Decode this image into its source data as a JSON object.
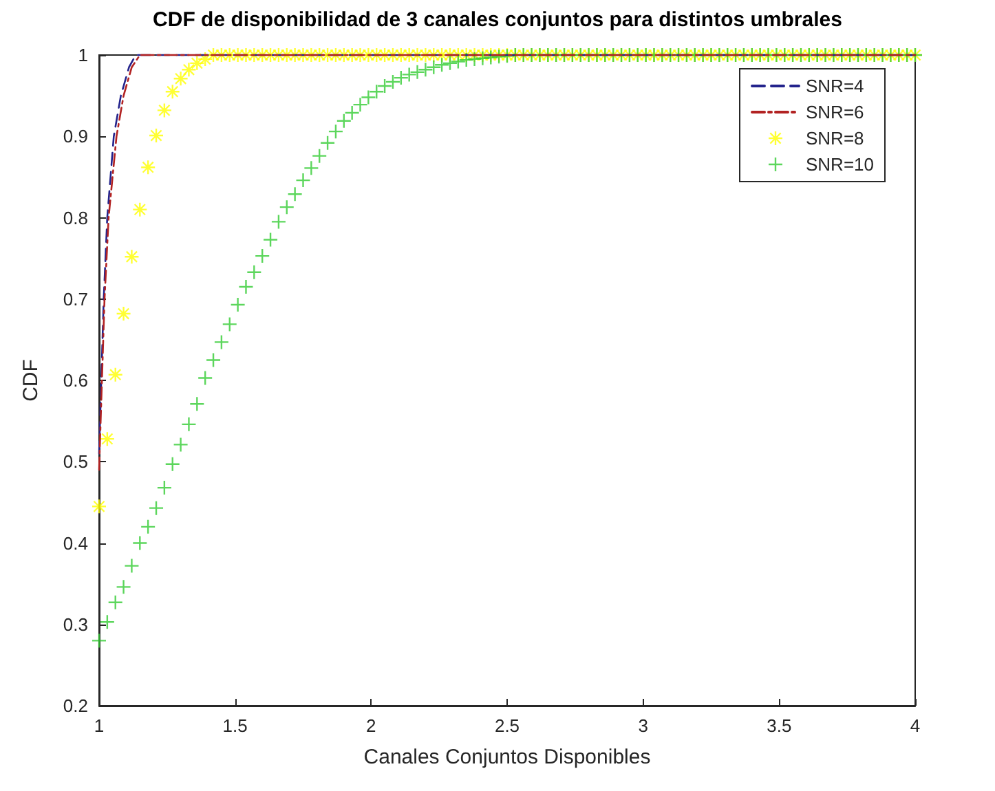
{
  "chart_data": {
    "type": "line",
    "title": "CDF de disponibilidad de 3 canales conjuntos para distintos umbrales",
    "xlabel": "Canales Conjuntos Disponibles",
    "ylabel": "CDF",
    "xlim": [
      1,
      4
    ],
    "xticks": [
      1,
      1.5,
      2,
      2.5,
      3,
      3.5,
      4
    ],
    "ylim": [
      0.2,
      1
    ],
    "yticks": [
      0.2,
      0.3,
      0.4,
      0.5,
      0.6,
      0.7,
      0.8,
      0.9,
      1
    ],
    "grid": false,
    "legend": "top right",
    "series": [
      {
        "name": "SNR=4",
        "color": "#23238c",
        "line_style": "dashed",
        "marker": "none",
        "x": [
          1,
          1.017,
          1.03,
          1.054,
          1.08,
          1.11,
          1.135,
          4
        ],
        "values": [
          0.51,
          0.7,
          0.8,
          0.9,
          0.95,
          0.985,
          1,
          1
        ]
      },
      {
        "name": "SNR=6",
        "color": "#b22222",
        "line_style": "dashdot",
        "marker": "none",
        "x": [
          1,
          1.02,
          1.035,
          1.064,
          1.09,
          1.12,
          1.15,
          4
        ],
        "values": [
          0.49,
          0.7,
          0.8,
          0.9,
          0.95,
          0.985,
          1,
          1
        ]
      },
      {
        "name": "SNR=8",
        "color": "#ffff00",
        "type": "scatter",
        "marker": "star",
        "x": [
          1,
          1.03,
          1.06,
          1.09,
          1.12,
          1.15,
          1.18,
          1.21,
          1.24,
          1.27,
          1.3,
          1.33,
          1.36,
          1.39,
          1.42,
          1.45,
          1.48,
          1.51,
          1.54,
          1.57,
          1.6,
          1.63,
          1.66,
          1.69,
          1.72,
          1.75,
          1.78,
          1.81,
          1.84,
          1.87,
          1.9,
          1.93,
          1.96,
          1.99,
          2.02,
          2.05,
          2.08,
          2.11,
          2.14,
          2.17,
          2.2,
          2.23,
          2.26,
          2.29,
          2.32,
          2.35,
          2.38,
          2.41,
          2.44,
          2.47,
          2.5,
          2.53,
          2.56,
          2.59,
          2.62,
          2.65,
          2.68,
          2.71,
          2.74,
          2.77,
          2.8,
          2.83,
          2.86,
          2.89,
          2.92,
          2.95,
          2.98,
          3.01,
          3.04,
          3.07,
          3.1,
          3.13,
          3.16,
          3.19,
          3.22,
          3.25,
          3.28,
          3.31,
          3.34,
          3.37,
          3.4,
          3.43,
          3.46,
          3.49,
          3.52,
          3.55,
          3.58,
          3.61,
          3.64,
          3.67,
          3.7,
          3.73,
          3.76,
          3.79,
          3.82,
          3.85,
          3.88,
          3.91,
          3.94,
          3.97,
          4
        ],
        "values": [
          0.445,
          0.528,
          0.607,
          0.682,
          0.752,
          0.81,
          0.862,
          0.901,
          0.932,
          0.955,
          0.971,
          0.982,
          0.99,
          0.995,
          1,
          1,
          1,
          1,
          1,
          1,
          1,
          1,
          1,
          1,
          1,
          1,
          1,
          1,
          1,
          1,
          1,
          1,
          1,
          1,
          1,
          1,
          1,
          1,
          1,
          1,
          1,
          1,
          1,
          1,
          1,
          1,
          1,
          1,
          1,
          1,
          1,
          1,
          1,
          1,
          1,
          1,
          1,
          1,
          1,
          1,
          1,
          1,
          1,
          1,
          1,
          1,
          1,
          1,
          1,
          1,
          1,
          1,
          1,
          1,
          1,
          1,
          1,
          1,
          1,
          1,
          1,
          1,
          1,
          1,
          1,
          1,
          1,
          1,
          1,
          1,
          1,
          1,
          1,
          1,
          1,
          1,
          1,
          1,
          1,
          1,
          1
        ]
      },
      {
        "name": "SNR=10",
        "color": "#33cc33",
        "type": "scatter",
        "marker": "cross",
        "x": [
          1,
          1.03,
          1.06,
          1.09,
          1.12,
          1.15,
          1.18,
          1.21,
          1.24,
          1.27,
          1.3,
          1.33,
          1.36,
          1.39,
          1.42,
          1.45,
          1.48,
          1.51,
          1.54,
          1.57,
          1.6,
          1.63,
          1.66,
          1.69,
          1.72,
          1.75,
          1.78,
          1.81,
          1.84,
          1.87,
          1.9,
          1.93,
          1.96,
          1.99,
          2.02,
          2.05,
          2.08,
          2.11,
          2.14,
          2.17,
          2.2,
          2.23,
          2.26,
          2.29,
          2.32,
          2.35,
          2.38,
          2.41,
          2.44,
          2.47,
          2.5,
          2.53,
          2.56,
          2.59,
          2.62,
          2.65,
          2.68,
          2.71,
          2.74,
          2.77,
          2.8,
          2.83,
          2.86,
          2.89,
          2.92,
          2.95,
          2.98,
          3.01,
          3.04,
          3.07,
          3.1,
          3.13,
          3.16,
          3.19,
          3.22,
          3.25,
          3.28,
          3.31,
          3.34,
          3.37,
          3.4,
          3.43,
          3.46,
          3.49,
          3.52,
          3.55,
          3.58,
          3.61,
          3.64,
          3.67,
          3.7,
          3.73,
          3.76,
          3.79,
          3.82,
          3.85,
          3.88,
          3.91,
          3.94,
          3.97,
          4
        ],
        "values": [
          0.28,
          0.303,
          0.327,
          0.346,
          0.372,
          0.4,
          0.42,
          0.443,
          0.468,
          0.497,
          0.521,
          0.546,
          0.571,
          0.603,
          0.625,
          0.647,
          0.669,
          0.693,
          0.715,
          0.733,
          0.753,
          0.773,
          0.795,
          0.813,
          0.829,
          0.846,
          0.861,
          0.876,
          0.892,
          0.906,
          0.919,
          0.929,
          0.939,
          0.948,
          0.955,
          0.962,
          0.967,
          0.972,
          0.976,
          0.979,
          0.982,
          0.985,
          0.988,
          0.99,
          0.992,
          0.994,
          0.995,
          0.996,
          0.997,
          0.998,
          0.999,
          1,
          1,
          1,
          1,
          1,
          1,
          1,
          1,
          1,
          1,
          1,
          1,
          1,
          1,
          1,
          1,
          1,
          1,
          1,
          1,
          1,
          1,
          1,
          1,
          1,
          1,
          1,
          1,
          1,
          1,
          1,
          1,
          1,
          1,
          1,
          1,
          1,
          1,
          1,
          1,
          1,
          1,
          1,
          1,
          1,
          1,
          1,
          1,
          1,
          1
        ]
      }
    ]
  }
}
